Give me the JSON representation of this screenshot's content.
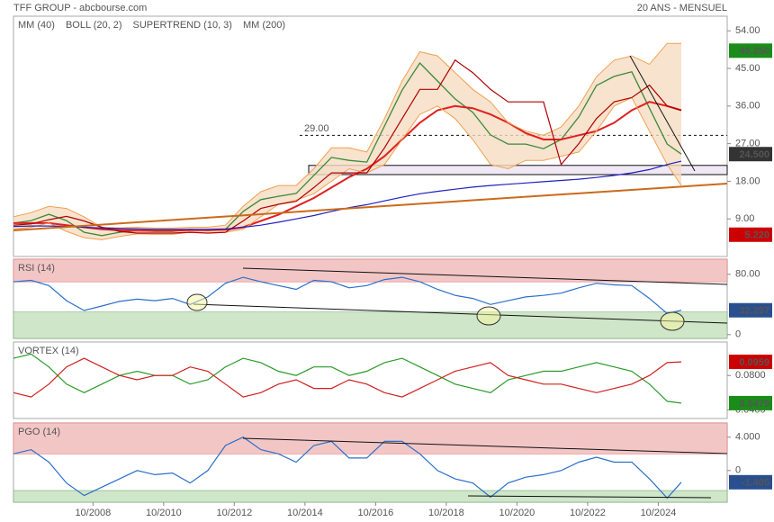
{
  "header": {
    "left": "TFF GROUP - abcbourse.com",
    "right": "20 ANS - MENSUEL"
  },
  "chart_data": {
    "type": "line",
    "x": [
      2006.5,
      2007,
      2007.5,
      2008,
      2008.5,
      2009,
      2009.5,
      2010,
      2010.5,
      2011,
      2011.5,
      2012,
      2012.5,
      2013,
      2013.5,
      2014,
      2014.5,
      2015,
      2015.5,
      2016,
      2016.5,
      2017,
      2017.5,
      2018,
      2018.5,
      2019,
      2019.5,
      2020,
      2020.5,
      2021,
      2021.5,
      2022,
      2022.5,
      2023,
      2023.5,
      2024,
      2024.5,
      2025,
      2025.4
    ],
    "xlim": [
      2006.5,
      2026.7
    ],
    "xticks": [
      {
        "value": 2008.75,
        "label": "10/2008"
      },
      {
        "value": 2010.75,
        "label": "10/2010"
      },
      {
        "value": 2012.75,
        "label": "10/2012"
      },
      {
        "value": 2014.75,
        "label": "10/2014"
      },
      {
        "value": 2016.75,
        "label": "10/2016"
      },
      {
        "value": 2018.75,
        "label": "10/2018"
      },
      {
        "value": 2020.75,
        "label": "10/2020"
      },
      {
        "value": 2022.75,
        "label": "10/2022"
      },
      {
        "value": 2024.75,
        "label": "10/2024"
      }
    ],
    "panels": [
      {
        "ylim": [
          0,
          57.5
        ],
        "yticks": [
          {
            "value": 54,
            "label": "54.00"
          },
          {
            "value": 45,
            "label": "45.00"
          },
          {
            "value": 36,
            "label": "36.00"
          },
          {
            "value": 27,
            "label": "27.00"
          },
          {
            "value": 18,
            "label": "18.00"
          },
          {
            "value": 9,
            "label": "9.00"
          }
        ],
        "candles": {
          "color": "#3a8a3a",
          "values": [
            8.0,
            8.6,
            10.1,
            8.6,
            5.8,
            5.0,
            5.8,
            6.2,
            6.0,
            6.0,
            6.5,
            6.2,
            6.5,
            10.8,
            13.6,
            14.4,
            15.1,
            19.4,
            23.7,
            23.0,
            22.6,
            31.2,
            39.8,
            46.3,
            42.0,
            37.7,
            34.5,
            29.1,
            26.9,
            26.9,
            25.8,
            28.0,
            33.4,
            40.9,
            43.1,
            44.2,
            35.5,
            26.9,
            24.5
          ]
        },
        "series": [
          {
            "name": "MM (40)",
            "color": "#e02020",
            "values": [
              8,
              8,
              8,
              7.5,
              7,
              6.5,
              6.3,
              6.2,
              6.2,
              6.2,
              6.3,
              6.3,
              6.4,
              7,
              8.5,
              10,
              12,
              14,
              16.5,
              19,
              21,
              24,
              28,
              32,
              35,
              36,
              35.5,
              34,
              32,
              29.5,
              28,
              28,
              29,
              30,
              32,
              35,
              37,
              36,
              35
            ]
          },
          {
            "name": "BOLL (20, 2)",
            "color": "#f0a050",
            "upper": [
              9.5,
              10.5,
              12,
              11.5,
              9.5,
              7,
              6.8,
              7,
              6.8,
              6.8,
              7,
              7,
              7.5,
              12,
              15.5,
              17,
              17,
              21,
              26,
              26,
              25,
              33,
              42,
              49,
              48,
              44,
              40,
              37,
              32,
              30,
              29,
              31,
              36,
              43,
              47,
              48,
              46,
              51,
              51
            ],
            "lower": [
              6.5,
              7,
              8,
              6,
              4.5,
              4,
              4.8,
              5.4,
              5.3,
              5.3,
              5.8,
              5.6,
              5.8,
              6.5,
              9.5,
              12.5,
              13.5,
              15,
              18,
              21,
              20,
              22,
              28,
              34,
              36,
              33,
              28,
              22,
              21,
              23,
              23,
              24,
              25,
              30,
              36,
              38,
              30,
              22,
              17
            ]
          },
          {
            "name": "SUPERTREND (10, 3)",
            "color": "#b00000",
            "values": [
              7.5,
              7.8,
              8.8,
              9.6,
              8.5,
              7,
              6,
              5.6,
              5.6,
              5.6,
              5.8,
              5.6,
              5.8,
              8.5,
              11.5,
              12.5,
              13.2,
              16.5,
              20,
              20,
              20,
              26,
              33,
              40,
              40,
              47,
              44,
              40,
              37,
              37,
              37,
              22,
              27,
              33,
              37,
              38,
              41,
              36,
              35
            ]
          },
          {
            "name": "MM (200)",
            "color": "#2020c0",
            "values": [
              7.2,
              7.3,
              7.3,
              7.2,
              7.0,
              6.8,
              6.7,
              6.6,
              6.5,
              6.5,
              6.5,
              6.5,
              6.6,
              7.0,
              7.5,
              8.2,
              9,
              9.8,
              10.8,
              11.7,
              12.4,
              13.3,
              14.2,
              15,
              15.6,
              16.1,
              16.6,
              17,
              17.3,
              17.6,
              17.9,
              18.2,
              18.5,
              18.9,
              19.4,
              20,
              20.8,
              22,
              22.8
            ]
          }
        ],
        "levels": [
          {
            "value": 29,
            "label": "29.00"
          }
        ],
        "band": [
          19.6,
          21.8
        ],
        "markers": [
          {
            "value": 49.25,
            "label": "49.250",
            "color": "#1a8c1a"
          },
          {
            "value": 24.5,
            "label": "24.500",
            "color": "#333333"
          },
          {
            "value": 5.22,
            "label": "5.220",
            "color": "#cc0000"
          }
        ]
      },
      {
        "label": "RSI (14)",
        "label_color": "#333333",
        "ylim": [
          -5,
          100
        ],
        "yticks": [
          {
            "value": 80,
            "label": "80.00"
          },
          0
        ],
        "zones": [
          70,
          30
        ],
        "series": [
          {
            "color": "#2a6fc9",
            "values": [
              70,
              72,
              65,
              45,
              32,
              38,
              44,
              47,
              45,
              48,
              40,
              50,
              68,
              76,
              70,
              65,
              60,
              72,
              70,
              62,
              65,
              73,
              76,
              70,
              60,
              52,
              48,
              40,
              45,
              50,
              52,
              55,
              62,
              68,
              66,
              65,
              48,
              28,
              32.297
            ]
          }
        ],
        "markers": [
          {
            "value": 32.297,
            "label": "32.297",
            "color": "#2a4f8f"
          }
        ]
      },
      {
        "label": "VORTEX (14)",
        "label_color": "#1a8c1a",
        "ylim": [
          0.03,
          0.119
        ],
        "yticks": [
          {
            "value": 0.08,
            "label": "0.0800"
          },
          {
            "value": 0.04,
            "label": "0.0400"
          }
        ],
        "series": [
          {
            "color": "#2a9a2a",
            "values": [
              0.1,
              0.105,
              0.09,
              0.07,
              0.06,
              0.07,
              0.08,
              0.085,
              0.08,
              0.08,
              0.07,
              0.075,
              0.09,
              0.1,
              0.095,
              0.085,
              0.08,
              0.09,
              0.09,
              0.08,
              0.085,
              0.095,
              0.1,
              0.09,
              0.08,
              0.07,
              0.065,
              0.06,
              0.075,
              0.08,
              0.085,
              0.085,
              0.09,
              0.095,
              0.09,
              0.085,
              0.07,
              0.05,
              0.0479
            ]
          },
          {
            "color": "#d02020",
            "values": [
              0.06,
              0.055,
              0.07,
              0.09,
              0.1,
              0.09,
              0.08,
              0.075,
              0.08,
              0.08,
              0.09,
              0.085,
              0.07,
              0.055,
              0.06,
              0.07,
              0.075,
              0.065,
              0.065,
              0.075,
              0.07,
              0.06,
              0.055,
              0.065,
              0.075,
              0.085,
              0.09,
              0.095,
              0.08,
              0.075,
              0.07,
              0.07,
              0.065,
              0.06,
              0.065,
              0.07,
              0.08,
              0.095,
              0.0959
            ]
          }
        ],
        "markers": [
          {
            "value": 0.0959,
            "label": "0.0959",
            "color": "#cc0000"
          },
          {
            "value": 0.0479,
            "label": "0.0479",
            "color": "#1a8c1a"
          }
        ]
      },
      {
        "label": "PGO (14)",
        "label_color": "#2a6fc9",
        "ylim": [
          -3.8,
          5.7
        ],
        "yticks": [
          {
            "value": 4,
            "label": "4.000"
          },
          0
        ],
        "zones": [
          2,
          -2.4
        ],
        "series": [
          {
            "color": "#2a6fc9",
            "values": [
              2,
              2.5,
              1,
              -1.5,
              -3,
              -2,
              -1,
              0,
              -0.5,
              -0.3,
              -1.5,
              0,
              3,
              4,
              2.5,
              2,
              1,
              3,
              3.5,
              1.5,
              1.5,
              3.5,
              3.5,
              2,
              0,
              -1,
              -1.5,
              -3.2,
              -1.5,
              -0.8,
              -0.5,
              0,
              1,
              1.6,
              1,
              1,
              -1,
              -3.3,
              -1.405
            ]
          }
        ],
        "markers": [
          {
            "value": -1.405,
            "label": "-1.405",
            "color": "#2a4f8f"
          }
        ]
      }
    ]
  }
}
